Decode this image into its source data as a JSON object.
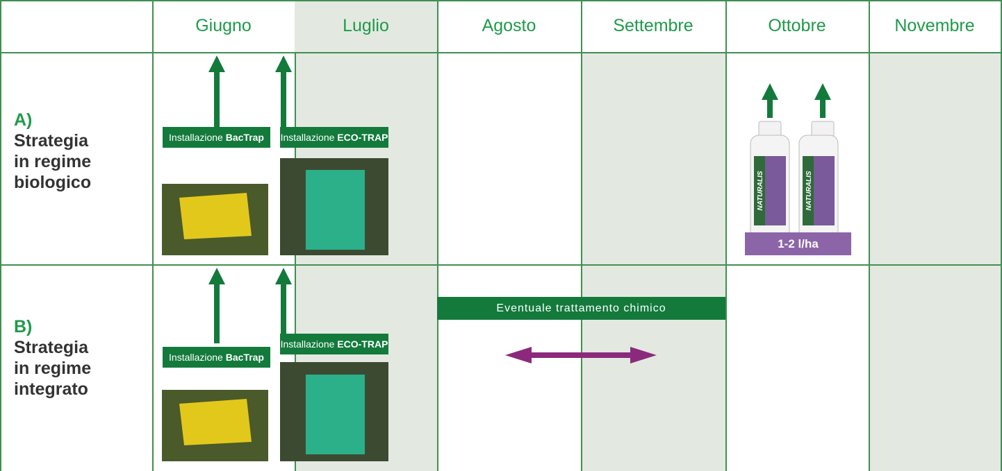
{
  "header": {
    "months": [
      "Giugno",
      "Luglio",
      "Agosto",
      "Settembre",
      "Ottobre",
      "Novembre"
    ]
  },
  "rows": [
    {
      "letter": "A)",
      "label_lines": [
        "Strategia",
        "in regime",
        "biologico"
      ],
      "traps": [
        {
          "prefix": "Installazione",
          "name": "BacTrap"
        },
        {
          "prefix": "Installazione",
          "name": "ECO-TRAP"
        }
      ],
      "product": {
        "brand": "NATURALIS",
        "dose": "1-2 l/ha"
      }
    },
    {
      "letter": "B)",
      "label_lines": [
        "Strategia",
        "in regime",
        "integrato"
      ],
      "traps": [
        {
          "prefix": "Installazione",
          "name": "BacTrap"
        },
        {
          "prefix": "Installazione",
          "name": "ECO-TRAP"
        }
      ],
      "treatment": "Eventuale trattamento chimico"
    }
  ]
}
